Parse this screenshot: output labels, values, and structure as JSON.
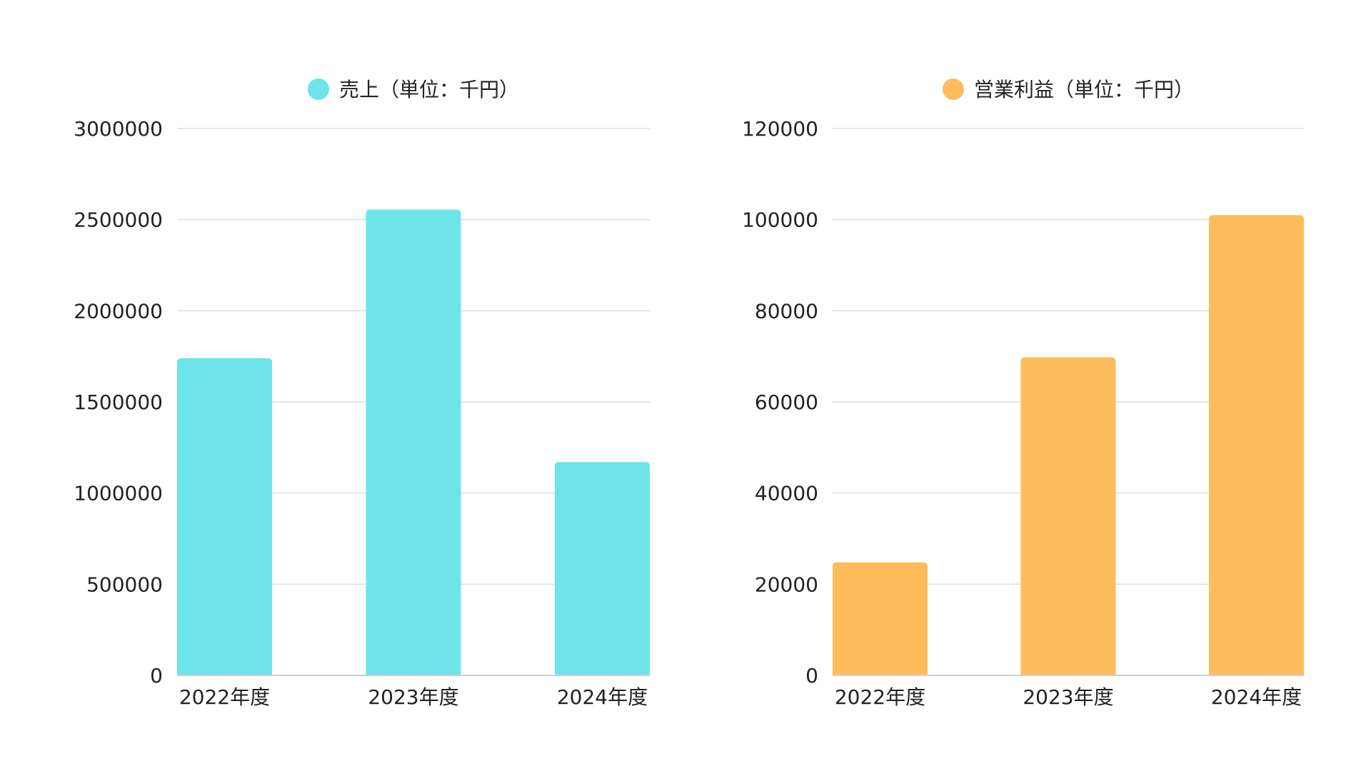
{
  "chart_data": [
    {
      "type": "bar",
      "legend": {
        "label": "売上（単位：千円）",
        "color": "#6ce4e8",
        "position": "top-center"
      },
      "categories": [
        "2022年度",
        "2023年度",
        "2024年度"
      ],
      "series": [
        {
          "name": "売上（単位：千円）",
          "values": [
            1740000,
            2555000,
            1170000
          ]
        }
      ],
      "ylim": [
        0,
        3000000
      ],
      "yticks": [
        0,
        500000,
        1000000,
        1500000,
        2000000,
        2500000,
        3000000
      ],
      "grid": true,
      "xlabel": "",
      "ylabel": ""
    },
    {
      "type": "bar",
      "legend": {
        "label": "営業利益（単位：千円）",
        "color": "#ffbc5b",
        "position": "top-center"
      },
      "categories": [
        "2022年度",
        "2023年度",
        "2024年度"
      ],
      "series": [
        {
          "name": "営業利益（単位：千円）",
          "values": [
            24800,
            69800,
            101000
          ]
        }
      ],
      "ylim": [
        0,
        120000
      ],
      "yticks": [
        0,
        20000,
        40000,
        60000,
        80000,
        100000,
        120000
      ],
      "grid": true,
      "xlabel": "",
      "ylabel": ""
    }
  ]
}
